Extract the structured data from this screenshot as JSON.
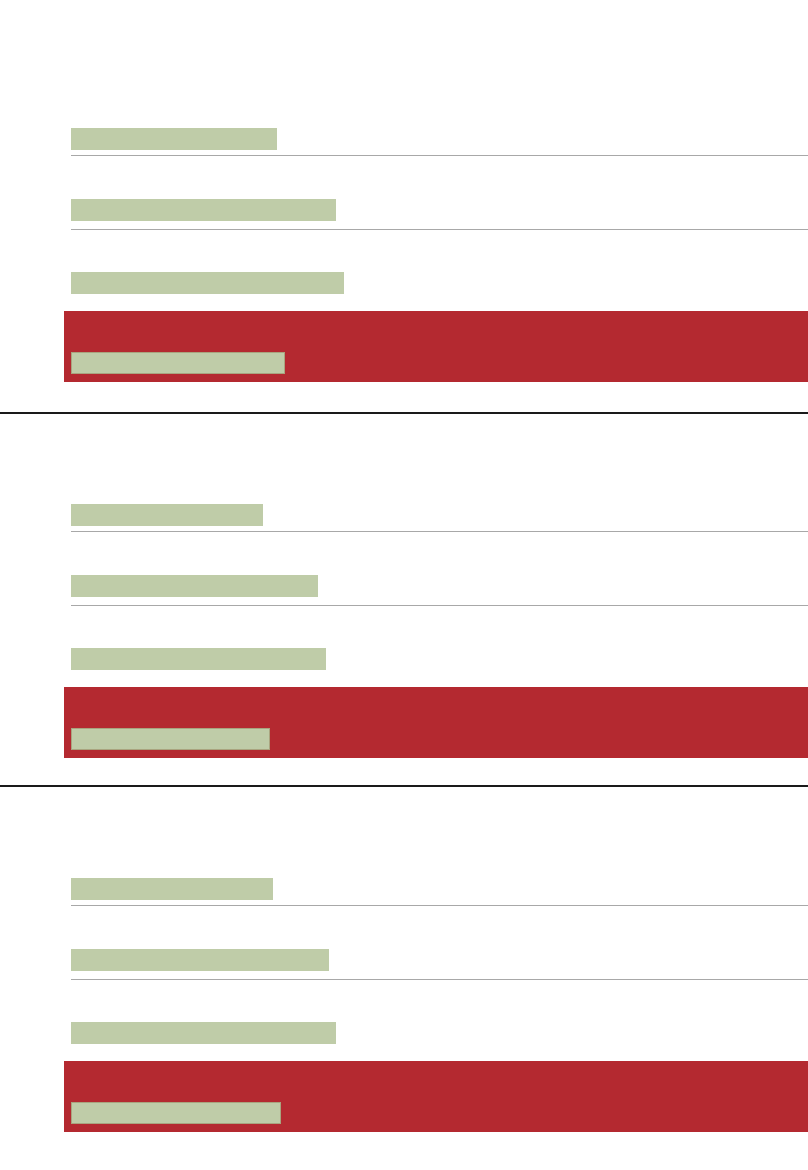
{
  "colors": {
    "placeholder_bar": "#bfcca8",
    "highlight_row": "#b42930",
    "row_separator": "#a8a8a8",
    "section_divider": "#1a1a1a"
  },
  "sections": [
    {
      "rows": [
        {
          "fill": 0.28
        },
        {
          "fill": 0.36
        },
        {
          "fill": 0.37
        }
      ],
      "highlighted_row": {
        "fill": 0.29
      }
    },
    {
      "rows": [
        {
          "fill": 0.26
        },
        {
          "fill": 0.335
        },
        {
          "fill": 0.346
        }
      ],
      "highlighted_row": {
        "fill": 0.27
      }
    },
    {
      "rows": [
        {
          "fill": 0.274
        },
        {
          "fill": 0.35
        },
        {
          "fill": 0.36
        }
      ],
      "highlighted_row": {
        "fill": 0.285
      }
    }
  ]
}
